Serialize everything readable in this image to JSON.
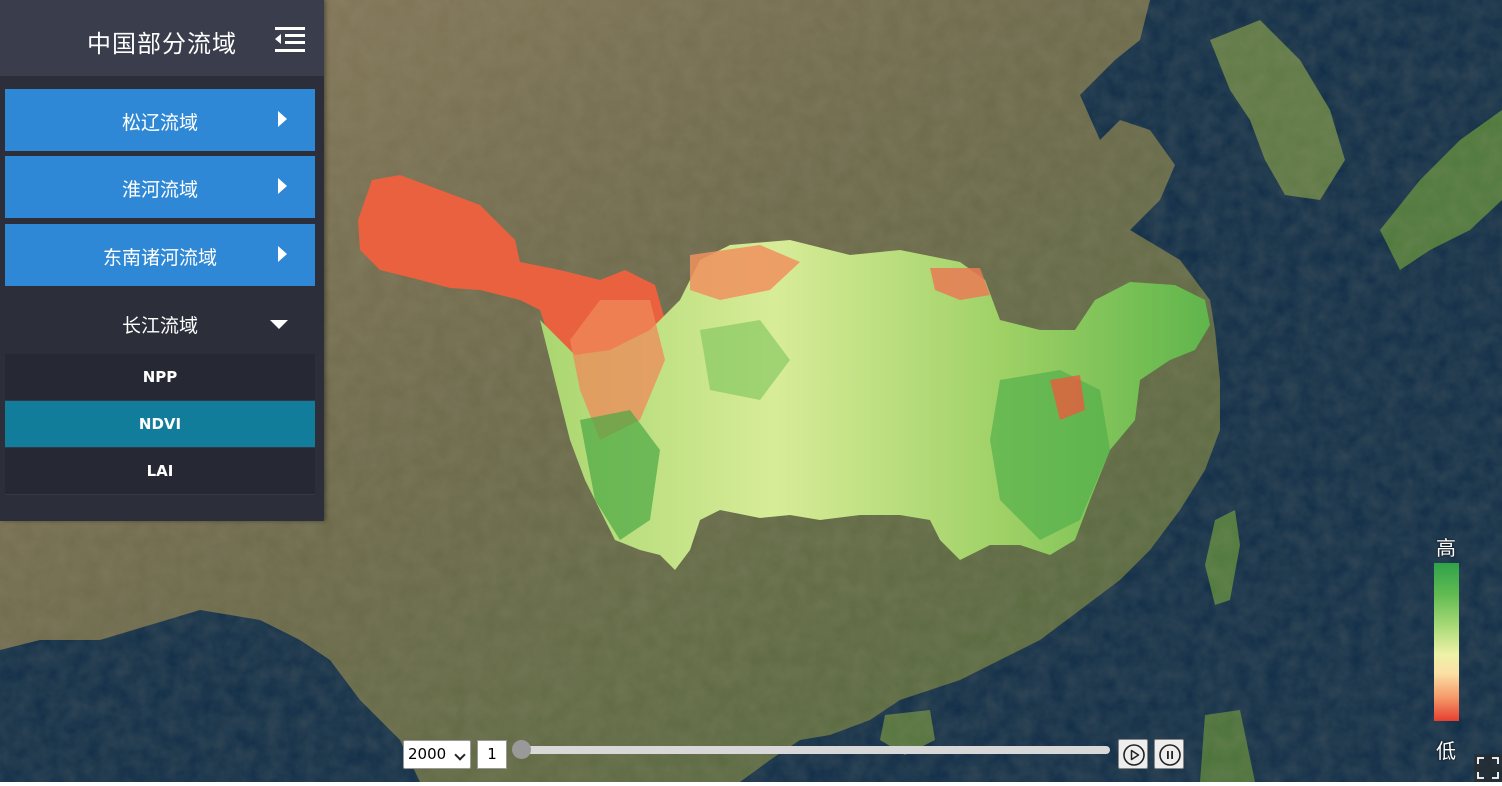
{
  "sidebar": {
    "title": "中国部分流域",
    "basins": [
      {
        "label": "松辽流域"
      },
      {
        "label": "淮河流域"
      },
      {
        "label": "东南诸河流域"
      },
      {
        "label": "长江流域"
      }
    ],
    "sub_items": [
      {
        "label": "NPP"
      },
      {
        "label": "NDVI"
      },
      {
        "label": "LAI"
      }
    ],
    "active_sub_item": "NDVI",
    "expanded_basin": "长江流域"
  },
  "legend": {
    "high_label": "高",
    "low_label": "低",
    "colors": [
      "#2ea24a",
      "#a9da78",
      "#eef2a8",
      "#f59a6a",
      "#e63f2f"
    ]
  },
  "time_controls": {
    "year": "2000",
    "month": "1",
    "slider_fraction": 0.0
  },
  "colors": {
    "sidebar_bg": "#2c2f3a",
    "header_bg": "#3a3d4b",
    "basin_button": "#2e88d6",
    "active_sub_item": "#127c9b",
    "ocean": "#0d2a44"
  },
  "icons": {
    "menu_toggle": "menu-collapse-icon",
    "play": "play-icon",
    "pause": "pause-icon",
    "fullscreen": "fullscreen-icon"
  }
}
